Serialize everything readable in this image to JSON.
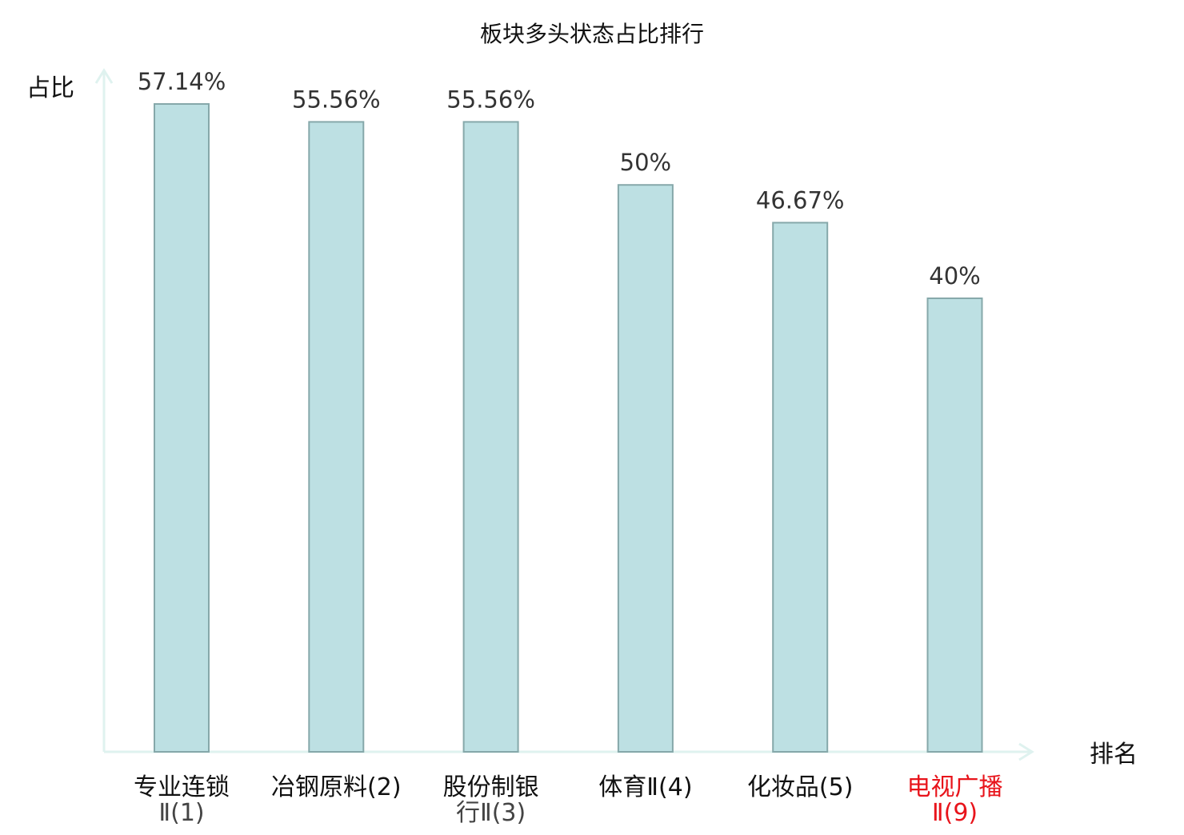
{
  "chart_data": {
    "type": "bar",
    "title": "板块多头状态占比排行",
    "ylabel": "占比",
    "xlabel": "排名",
    "ylim": [
      0,
      60
    ],
    "grid": false,
    "categories": [
      {
        "lines": [
          "专业连锁",
          "Ⅱ(1)"
        ],
        "highlight": false
      },
      {
        "lines": [
          "冶钢原料(2)"
        ],
        "highlight": false
      },
      {
        "lines": [
          "股份制银",
          "行Ⅱ(3)"
        ],
        "highlight": false
      },
      {
        "lines": [
          "体育Ⅱ(4)"
        ],
        "highlight": false
      },
      {
        "lines": [
          "化妆品(5)"
        ],
        "highlight": false
      },
      {
        "lines": [
          "电视广播",
          "Ⅱ(9)"
        ],
        "highlight": true
      }
    ],
    "values": [
      57.14,
      55.56,
      55.56,
      50,
      46.67,
      40
    ],
    "value_labels": [
      "57.14%",
      "55.56%",
      "55.56%",
      "50%",
      "46.67%",
      "40%"
    ]
  },
  "colors": {
    "bar_fill": "#bde0e3",
    "bar_stroke": "#86a8aa",
    "axis": "#dff2ef",
    "highlight_text": "#e8141b",
    "value_text": "#333333"
  }
}
